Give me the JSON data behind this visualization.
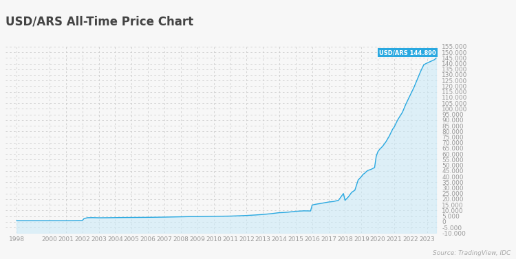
{
  "title": "USD/ARS All-Time Price Chart",
  "source": "Source: TradingView, IDC",
  "annotation_label": "USD/ARS 144.890",
  "annotation_color": "#29a8e0",
  "line_color": "#29a8e0",
  "fill_color": "#c8e9f8",
  "background_color": "#f7f7f7",
  "ylim": [
    -10000,
    155000
  ],
  "ytick_step": 5000,
  "x_labels": [
    "1998",
    "2000",
    "2001",
    "2002",
    "2003",
    "2004",
    "2005",
    "2006",
    "2007",
    "2008",
    "2009",
    "2010",
    "2011",
    "2012",
    "2013",
    "2014",
    "2015",
    "2016",
    "2017",
    "2018",
    "2019",
    "2020",
    "2021",
    "2022",
    "2023"
  ],
  "data_years": [
    1998.0,
    1998.3,
    1998.6,
    1999.0,
    1999.5,
    2000.0,
    2000.5,
    2001.0,
    2001.3,
    2001.6,
    2002.0,
    2002.1,
    2002.3,
    2002.6,
    2002.9,
    2003.0,
    2003.5,
    2004.0,
    2004.5,
    2005.0,
    2005.5,
    2006.0,
    2006.5,
    2007.0,
    2007.5,
    2008.0,
    2008.5,
    2009.0,
    2009.5,
    2010.0,
    2010.5,
    2011.0,
    2011.5,
    2012.0,
    2012.5,
    2013.0,
    2013.5,
    2014.0,
    2014.2,
    2014.5,
    2015.0,
    2015.5,
    2015.9,
    2016.0,
    2016.1,
    2016.2,
    2016.5,
    2016.8,
    2017.0,
    2017.3,
    2017.6,
    2017.9,
    2018.0,
    2018.2,
    2018.4,
    2018.6,
    2018.8,
    2019.0,
    2019.1,
    2019.2,
    2019.3,
    2019.4,
    2019.5,
    2019.6,
    2019.8,
    2019.9,
    2020.0,
    2020.1,
    2020.3,
    2020.5,
    2020.7,
    2020.9,
    2021.0,
    2021.2,
    2021.5,
    2021.7,
    2021.9,
    2022.0,
    2022.2,
    2022.4,
    2022.6,
    2022.8,
    2023.0,
    2023.15,
    2023.3,
    2023.45,
    2023.55
  ],
  "data_values": [
    990,
    990,
    990,
    990,
    990,
    990,
    990,
    990,
    990,
    1100,
    1200,
    2800,
    3600,
    3700,
    3600,
    3550,
    3600,
    3700,
    3800,
    3850,
    3900,
    3950,
    4050,
    4150,
    4300,
    4450,
    4600,
    4600,
    4700,
    4800,
    4950,
    5050,
    5300,
    5600,
    6000,
    6500,
    7200,
    8100,
    8200,
    8500,
    9300,
    9700,
    9600,
    14800,
    15200,
    15500,
    16200,
    17000,
    17500,
    18000,
    19000,
    25000,
    19000,
    22000,
    26000,
    28000,
    37000,
    40000,
    42000,
    43000,
    44500,
    45500,
    46000,
    46500,
    48000,
    58000,
    62000,
    64000,
    67000,
    71000,
    76000,
    82000,
    84000,
    90000,
    97000,
    104000,
    110000,
    113000,
    119000,
    126000,
    133000,
    139000,
    140500,
    141500,
    142500,
    143500,
    144890
  ],
  "xlim_start": 1997.3,
  "xlim_end": 2023.7
}
